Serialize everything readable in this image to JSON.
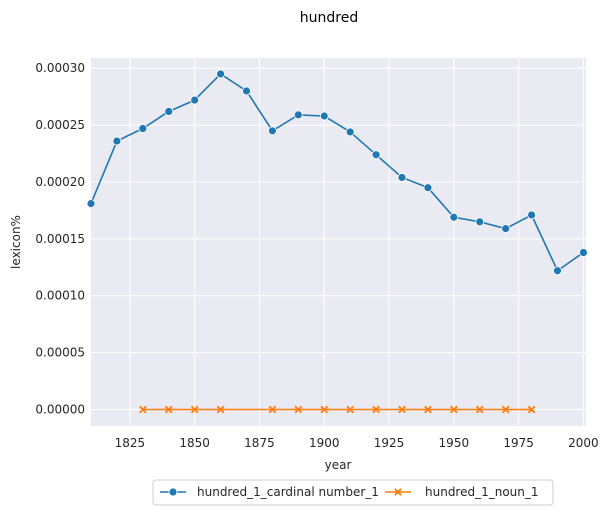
{
  "chart_data": {
    "type": "line",
    "title": "hundred",
    "xlabel": "year",
    "ylabel": "lexicon%",
    "xlim": [
      1810,
      2001
    ],
    "ylim": [
      -1.45e-05,
      0.000309
    ],
    "xticks": [
      1825,
      1850,
      1875,
      1900,
      1925,
      1950,
      1975,
      2000
    ],
    "xtick_labels": [
      "1825",
      "1850",
      "1875",
      "1900",
      "1925",
      "1950",
      "1975",
      "2000"
    ],
    "yticks": [
      0,
      5e-05,
      0.0001,
      0.00015,
      0.0002,
      0.00025,
      0.0003
    ],
    "ytick_labels": [
      "0.00000",
      "0.00005",
      "0.00010",
      "0.00015",
      "0.00020",
      "0.00025",
      "0.00030"
    ],
    "grid": true,
    "legend_position": "bottom-center",
    "series": [
      {
        "name": "hundred_1_cardinal number_1",
        "color": "#1f77b4",
        "marker": "circle",
        "x": [
          1810,
          1820,
          1830,
          1840,
          1850,
          1860,
          1870,
          1880,
          1890,
          1900,
          1910,
          1920,
          1930,
          1940,
          1950,
          1960,
          1970,
          1980,
          1990,
          2000
        ],
        "y": [
          0.000181,
          0.000236,
          0.000247,
          0.000262,
          0.000272,
          0.000295,
          0.00028,
          0.000245,
          0.000259,
          0.000258,
          0.000244,
          0.000224,
          0.000204,
          0.000195,
          0.000169,
          0.000165,
          0.000159,
          0.000171,
          0.000122,
          0.000138
        ]
      },
      {
        "name": "hundred_1_noun_1",
        "color": "#ff7f0e",
        "marker": "x",
        "x": [
          1830,
          1840,
          1850,
          1860,
          1880,
          1890,
          1900,
          1910,
          1920,
          1930,
          1940,
          1950,
          1960,
          1970,
          1980
        ],
        "y": [
          0,
          0,
          0,
          0,
          0,
          0,
          0,
          0,
          0,
          0,
          0,
          0,
          0,
          0,
          0
        ]
      }
    ]
  }
}
